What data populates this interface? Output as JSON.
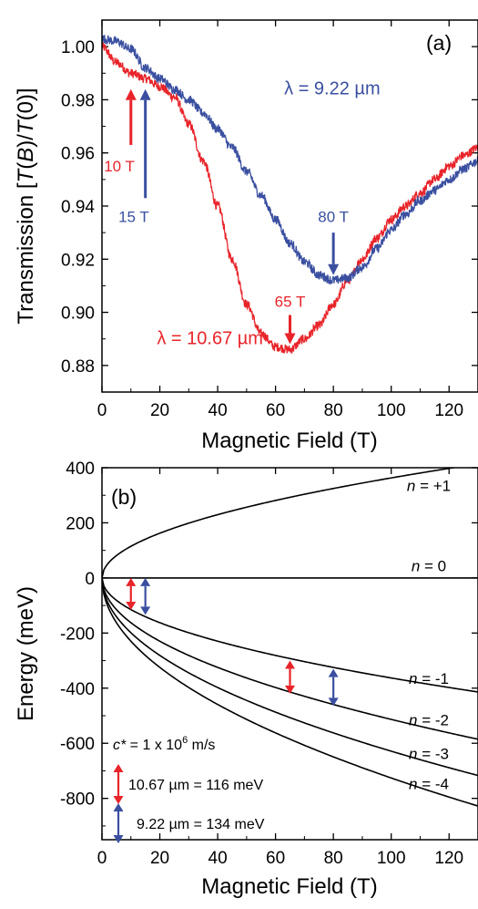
{
  "chart_data": [
    {
      "panel_label": "(a)",
      "type": "line",
      "xlabel": "Magnetic Field (T)",
      "ylabel_parts": [
        "Transmission [",
        "T",
        "(",
        "B",
        ")/",
        "T",
        "(0)]"
      ],
      "xlim": [
        0,
        130
      ],
      "ylim": [
        0.87,
        1.01
      ],
      "x_ticks": [
        0,
        20,
        40,
        60,
        80,
        100,
        120
      ],
      "y_ticks": [
        "0.88",
        "0.90",
        "0.92",
        "0.94",
        "0.96",
        "0.98",
        "1.00"
      ],
      "colors": {
        "red": "#e8242a",
        "blue": "#3a4fa0",
        "axis": "#000000"
      },
      "series": [
        {
          "name": "λ = 10.67 µm",
          "color": "#e8242a",
          "x": [
            0,
            5,
            10,
            15,
            20,
            25,
            30,
            35,
            40,
            45,
            50,
            55,
            60,
            65,
            70,
            75,
            80,
            85,
            90,
            95,
            100,
            105,
            110,
            115,
            120,
            125,
            130
          ],
          "y": [
            1.0,
            0.994,
            0.99,
            0.988,
            0.985,
            0.981,
            0.971,
            0.957,
            0.94,
            0.92,
            0.903,
            0.892,
            0.887,
            0.886,
            0.89,
            0.895,
            0.903,
            0.912,
            0.92,
            0.928,
            0.935,
            0.94,
            0.945,
            0.95,
            0.955,
            0.959,
            0.962
          ]
        },
        {
          "name": "λ = 9.22 µm",
          "color": "#3a4fa0",
          "x": [
            0,
            5,
            10,
            15,
            20,
            25,
            30,
            35,
            40,
            45,
            50,
            55,
            60,
            65,
            70,
            75,
            80,
            85,
            90,
            95,
            100,
            105,
            110,
            115,
            120,
            125,
            130
          ],
          "y": [
            1.003,
            1.002,
            0.999,
            0.992,
            0.988,
            0.984,
            0.98,
            0.975,
            0.969,
            0.962,
            0.953,
            0.944,
            0.935,
            0.926,
            0.919,
            0.914,
            0.912,
            0.913,
            0.917,
            0.924,
            0.931,
            0.937,
            0.942,
            0.946,
            0.95,
            0.954,
            0.957
          ]
        }
      ],
      "annotations": [
        {
          "text": "λ = 9.22 µm",
          "color": "#3a4fa0",
          "x": 63,
          "y": 0.982
        },
        {
          "text": "λ = 10.67 µm",
          "color": "#e8242a",
          "x": 19,
          "y": 0.888
        },
        {
          "text": "10 T",
          "color": "#e8242a",
          "x": 6,
          "y": 0.953
        },
        {
          "text": "15 T",
          "color": "#3a4fa0",
          "x": 11,
          "y": 0.934
        },
        {
          "text": "80 T",
          "color": "#3a4fa0",
          "x": 80,
          "y": 0.934
        },
        {
          "text": "65 T",
          "color": "#e8242a",
          "x": 65,
          "y": 0.902
        }
      ],
      "arrows": [
        {
          "color": "#e8242a",
          "x": 10,
          "y_from": 0.963,
          "y_to": 0.984,
          "direction": "up"
        },
        {
          "color": "#3a4fa0",
          "x": 15,
          "y_from": 0.943,
          "y_to": 0.984,
          "direction": "up"
        },
        {
          "color": "#3a4fa0",
          "x": 80,
          "y_from": 0.93,
          "y_to": 0.914,
          "direction": "down"
        },
        {
          "color": "#e8242a",
          "x": 65,
          "y_from": 0.899,
          "y_to": 0.888,
          "direction": "down"
        }
      ]
    },
    {
      "panel_label": "(b)",
      "type": "line",
      "xlabel": "Magnetic Field (T)",
      "ylabel": "Energy (meV)",
      "xlim": [
        0,
        130
      ],
      "ylim": [
        -950,
        400
      ],
      "x_ticks": [
        0,
        20,
        40,
        60,
        80,
        100,
        120
      ],
      "y_ticks": [
        400,
        200,
        0,
        -200,
        -400,
        -600,
        -800
      ],
      "level_coefficient": 36.3,
      "levels": [
        {
          "n_value": "+1",
          "sign": 1,
          "index": 1,
          "label_x": 113,
          "label_y": 315
        },
        {
          "n_value": "0",
          "sign": 0,
          "index": 0,
          "label_x": 113,
          "label_y": 25
        },
        {
          "n_value": "-1",
          "sign": -1,
          "index": 1,
          "label_x": 113,
          "label_y": -385
        },
        {
          "n_value": "-2",
          "sign": -1,
          "index": 2,
          "label_x": 113,
          "label_y": -535
        },
        {
          "n_value": "-3",
          "sign": -1,
          "index": 3,
          "label_x": 113,
          "label_y": -657
        },
        {
          "n_value": "-4",
          "sign": -1,
          "index": 4,
          "label_x": 113,
          "label_y": -767
        }
      ],
      "transition_arrows": [
        {
          "color": "#e8242a",
          "x": 10,
          "y_from": -116,
          "y_to": 0
        },
        {
          "color": "#3a4fa0",
          "x": 15,
          "y_from": -134,
          "y_to": 0
        },
        {
          "color": "#e8242a",
          "x": 65,
          "y_from": -420,
          "y_to": -300
        },
        {
          "color": "#3a4fa0",
          "x": 80,
          "y_from": -465,
          "y_to": -330
        }
      ],
      "c_star": {
        "prefix": "c*",
        "value": " = 1 x 10",
        "exponent": "6",
        "unit": " m/s"
      },
      "legend": [
        {
          "color": "#e8242a",
          "text": "10.67 µm = 116 meV"
        },
        {
          "color": "#3a4fa0",
          "text": "9.22 µm = 134 meV"
        }
      ]
    }
  ]
}
